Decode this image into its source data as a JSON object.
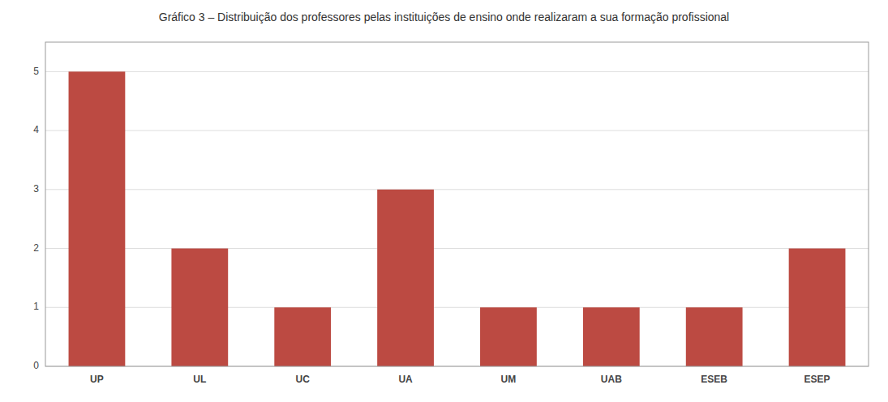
{
  "chart_data": {
    "type": "bar",
    "title": "Gráfico 3 – Distribuição dos professores pelas instituições de ensino onde realizaram a sua formação profissional",
    "categories": [
      "UP",
      "UL",
      "UC",
      "UA",
      "UM",
      "UAB",
      "ESEB",
      "ESEP"
    ],
    "values": [
      5,
      2,
      1,
      3,
      1,
      1,
      1,
      2
    ],
    "color": "#bc4a42",
    "ylim": [
      0,
      5.5
    ],
    "yticks": [
      0,
      1,
      2,
      3,
      4,
      5
    ],
    "grid": true
  }
}
